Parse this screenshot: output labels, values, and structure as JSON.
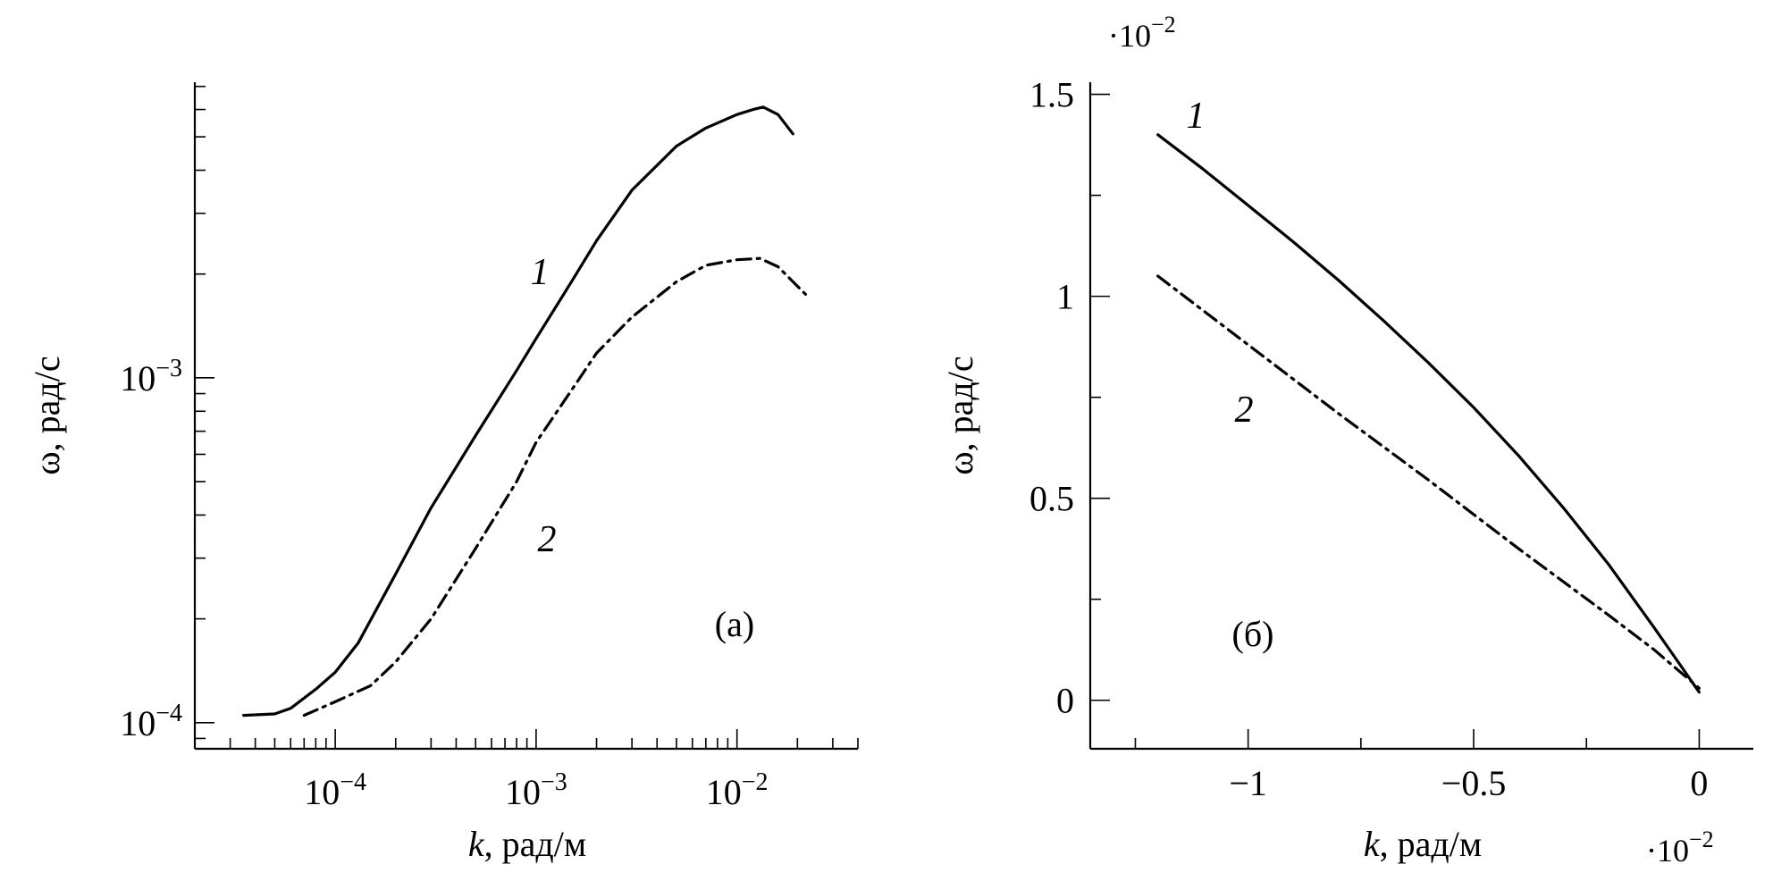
{
  "chart_data": [
    {
      "id": "a",
      "type": "line",
      "panel_label": "(а)",
      "xlabel_italic": "k",
      "xlabel_rest": ", рад/м",
      "ylabel": "ω, рад/с",
      "x_scale": "log",
      "y_scale": "log",
      "xlim": [
        2e-05,
        0.04
      ],
      "ylim": [
        8.4e-05,
        0.0072
      ],
      "x_tick_labels": [
        {
          "value": 0.0001,
          "base": "10",
          "exp": "−4"
        },
        {
          "value": 0.001,
          "base": "10",
          "exp": "−3"
        },
        {
          "value": 0.01,
          "base": "10",
          "exp": "−2"
        }
      ],
      "y_tick_labels": [
        {
          "value": 0.0001,
          "base": "10",
          "exp": "−4"
        },
        {
          "value": 0.001,
          "base": "10",
          "exp": "−3"
        }
      ],
      "series": [
        {
          "name": "1",
          "style": "solid",
          "x": [
            3.5e-05,
            5e-05,
            6e-05,
            8e-05,
            0.0001,
            0.00013,
            0.0002,
            0.0003,
            0.0005,
            0.0008,
            0.001,
            0.0015,
            0.002,
            0.003,
            0.005,
            0.007,
            0.01,
            0.012,
            0.0135,
            0.016,
            0.019
          ],
          "y": [
            0.000105,
            0.000106,
            0.00011,
            0.000125,
            0.00014,
            0.00017,
            0.00027,
            0.00042,
            0.00068,
            0.00105,
            0.0013,
            0.0019,
            0.0025,
            0.0035,
            0.0047,
            0.0053,
            0.0058,
            0.006,
            0.0061,
            0.0058,
            0.0051
          ]
        },
        {
          "name": "2",
          "style": "dash-dot",
          "x": [
            7e-05,
            0.0001,
            0.00015,
            0.0002,
            0.0003,
            0.0005,
            0.0008,
            0.001,
            0.0015,
            0.002,
            0.003,
            0.005,
            0.007,
            0.01,
            0.013,
            0.016,
            0.019,
            0.023
          ],
          "y": [
            0.000105,
            0.000115,
            0.000128,
            0.00015,
            0.0002,
            0.00032,
            0.0005,
            0.00065,
            0.00092,
            0.00118,
            0.0015,
            0.0019,
            0.00212,
            0.0022,
            0.00222,
            0.0021,
            0.0019,
            0.0017
          ]
        }
      ]
    },
    {
      "id": "b",
      "type": "line",
      "panel_label": "(б)",
      "xlabel_italic": "k",
      "xlabel_rest": ", рад/м",
      "ylabel": "ω, рад/с",
      "x_scale": "linear",
      "y_scale": "linear",
      "xlim": [
        -1.35,
        0.12
      ],
      "ylim": [
        -0.12,
        1.53
      ],
      "x_multiplier": "·10",
      "x_multiplier_exp": "−2",
      "y_multiplier": "·10",
      "y_multiplier_exp": "−2",
      "x_tick_labels": [
        {
          "value": -1,
          "text": "−1"
        },
        {
          "value": -0.5,
          "text": "−0.5"
        },
        {
          "value": 0,
          "text": "0"
        }
      ],
      "y_tick_labels": [
        {
          "value": 0,
          "text": "0"
        },
        {
          "value": 0.5,
          "text": "0.5"
        },
        {
          "value": 1,
          "text": "1"
        },
        {
          "value": 1.5,
          "text": "1.5"
        }
      ],
      "series": [
        {
          "name": "1",
          "style": "solid",
          "x": [
            -1.2,
            -1.1,
            -1.0,
            -0.9,
            -0.8,
            -0.7,
            -0.6,
            -0.5,
            -0.4,
            -0.3,
            -0.2,
            -0.1,
            -0.05,
            0.0
          ],
          "y": [
            1.4,
            1.315,
            1.225,
            1.135,
            1.04,
            0.94,
            0.835,
            0.725,
            0.605,
            0.475,
            0.335,
            0.18,
            0.1,
            0.02
          ]
        },
        {
          "name": "2",
          "style": "dash-dot",
          "x": [
            -1.2,
            -1.0,
            -0.8,
            -0.6,
            -0.4,
            -0.2,
            -0.1,
            0.0
          ],
          "y": [
            1.05,
            0.88,
            0.71,
            0.545,
            0.375,
            0.21,
            0.125,
            0.03
          ]
        }
      ]
    }
  ]
}
